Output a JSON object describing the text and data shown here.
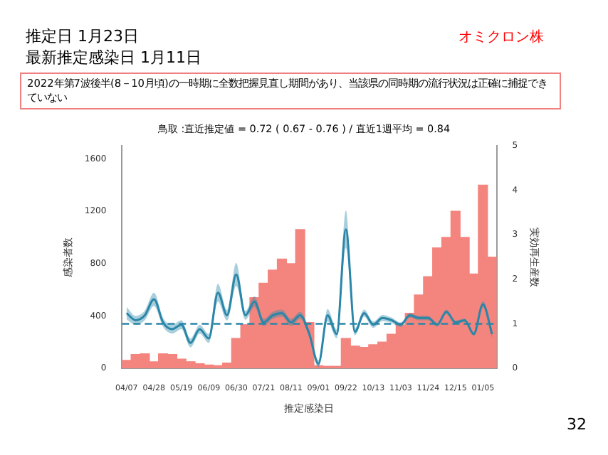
{
  "chart_data": {
    "type": "bar",
    "title": "鳥取 :直近推定値 = 0.72 ( 0.67 - 0.76 ) / 直近1週平均 = 0.84",
    "xlabel": "推定感染日",
    "ylabel": "感染者数",
    "y2label": "実効再生産数",
    "annotations": [
      "推定日  1月23日",
      "最新推定感染日  1月11日",
      "オミクロン株",
      "2022年第7波後半(8－10月頃)の一時期に全数把握見直し期間があり、当該県の同時期の流行状況は正確に捕捉できていない",
      "32"
    ],
    "categories": [
      "04/07",
      null,
      null,
      "04/28",
      null,
      null,
      "05/19",
      null,
      null,
      "06/09",
      null,
      null,
      "06/30",
      null,
      null,
      "07/21",
      null,
      null,
      "08/11",
      null,
      null,
      "09/01",
      null,
      null,
      "09/22",
      null,
      null,
      "10/13",
      null,
      null,
      "11/03",
      null,
      null,
      "11/24",
      null,
      null,
      "12/15",
      null,
      null,
      "01/05",
      null
    ],
    "series": [
      {
        "color": "#f4857e",
        "values": [
          60,
          105,
          110,
          50,
          110,
          105,
          70,
          50,
          35,
          25,
          20,
          40,
          228,
          333,
          540,
          650,
          750,
          835,
          800,
          1060,
          350,
          20,
          15,
          15,
          228,
          170,
          160,
          180,
          200,
          260,
          330,
          420,
          560,
          700,
          920,
          1000,
          1200,
          1000,
          720,
          1400,
          850
        ]
      },
      {
        "type": "line",
        "axis": "y2",
        "color": "#2a86a8",
        "values": [
          1.24,
          1.08,
          1.19,
          1.55,
          1.03,
          0.88,
          0.98,
          0.57,
          0.88,
          0.67,
          1.7,
          1.19,
          2.11,
          1.19,
          1.5,
          1.03,
          1.19,
          1.24,
          1.03,
          1.19,
          0.77,
          0.1,
          1.19,
          0.77,
          3.12,
          0.82,
          1.24,
          0.98,
          1.13,
          1.08,
          0.98,
          1.19,
          1.13,
          1.13,
          0.98,
          1.27,
          1.03,
          1.08,
          0.77,
          1.44,
          0.77
        ],
        "lower": [
          1.1,
          0.98,
          1.08,
          1.4,
          0.93,
          0.78,
          0.88,
          0.47,
          0.78,
          0.57,
          1.5,
          1.07,
          1.85,
          1.09,
          1.38,
          0.95,
          1.11,
          1.16,
          0.95,
          1.11,
          0.69,
          0.02,
          1.05,
          0.67,
          2.7,
          0.74,
          1.16,
          0.91,
          1.06,
          1.02,
          0.93,
          1.14,
          1.08,
          1.08,
          0.94,
          1.22,
          0.99,
          1.04,
          0.73,
          1.37,
          0.67
        ],
        "upper": [
          1.38,
          1.18,
          1.3,
          1.7,
          1.13,
          0.98,
          1.08,
          0.67,
          0.98,
          0.77,
          1.9,
          1.31,
          2.37,
          1.29,
          1.62,
          1.11,
          1.27,
          1.32,
          1.11,
          1.27,
          0.85,
          0.18,
          1.33,
          0.87,
          3.55,
          0.9,
          1.32,
          1.05,
          1.2,
          1.14,
          1.03,
          1.24,
          1.18,
          1.18,
          1.02,
          1.32,
          1.07,
          1.12,
          0.81,
          1.51,
          0.87
        ]
      }
    ],
    "ylim": [
      0,
      1700
    ],
    "yticks": [
      0,
      400,
      800,
      1200,
      1600
    ],
    "y2lim": [
      0,
      5
    ],
    "y2ticks": [
      0,
      1,
      2,
      3,
      4,
      5
    ],
    "ref_lines": [
      {
        "axis": "y2",
        "value": 1,
        "color": "#2a86a8",
        "line_style": "dashed"
      }
    ],
    "grid": false,
    "legend": false
  }
}
